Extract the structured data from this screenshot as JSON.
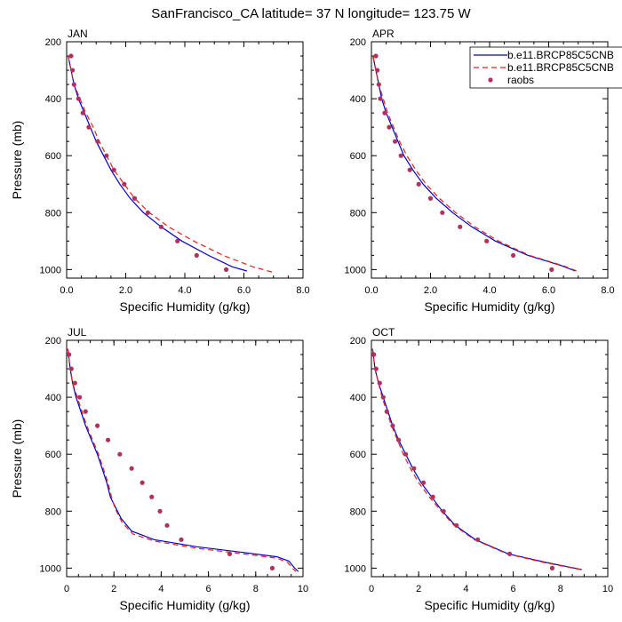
{
  "title": "SanFrancisco_CA  latitude= 37 N longitude= 123.75 W",
  "colors": {
    "model1": "#0000cc",
    "model2": "#e02020",
    "raobs": "#b03060"
  },
  "legend": {
    "placement": "top-right of APR panel",
    "entries": [
      "b.e11.BRCP85C5CNB",
      "b.e11.BRCP85C5CNB",
      "raobs"
    ]
  },
  "chart_data": [
    {
      "type": "line",
      "panel": "JAN",
      "title": "JAN",
      "xlabel": "Specific Humidity (g/kg)",
      "ylabel": "Pressure (mb)",
      "xlim": [
        0,
        8
      ],
      "ylim": [
        1030,
        200
      ],
      "xticks": [
        0,
        2,
        4,
        6,
        8
      ],
      "xtick_labels": [
        "0.0",
        "2.0",
        "4.0",
        "6.0",
        "8.0"
      ],
      "yticks": [
        200,
        400,
        600,
        800,
        1000
      ],
      "ytick_labels": [
        "200",
        "400",
        "600",
        "800",
        "1000"
      ],
      "series": [
        {
          "name": "b.e11.BRCP85C5CNB",
          "style": "solid",
          "points": [
            [
              0.05,
              250
            ],
            [
              0.15,
              300
            ],
            [
              0.25,
              350
            ],
            [
              0.4,
              400
            ],
            [
              0.6,
              450
            ],
            [
              0.8,
              500
            ],
            [
              1.0,
              550
            ],
            [
              1.25,
              600
            ],
            [
              1.5,
              650
            ],
            [
              1.8,
              700
            ],
            [
              2.15,
              750
            ],
            [
              2.6,
              800
            ],
            [
              3.2,
              850
            ],
            [
              3.9,
              900
            ],
            [
              4.8,
              950
            ],
            [
              5.6,
              990
            ],
            [
              6.1,
              1005
            ]
          ]
        },
        {
          "name": "b.e11.BRCP85C5CNB",
          "style": "dashed",
          "points": [
            [
              0.05,
              250
            ],
            [
              0.15,
              300
            ],
            [
              0.25,
              350
            ],
            [
              0.45,
              400
            ],
            [
              0.65,
              450
            ],
            [
              0.9,
              500
            ],
            [
              1.1,
              550
            ],
            [
              1.35,
              600
            ],
            [
              1.6,
              650
            ],
            [
              1.95,
              700
            ],
            [
              2.3,
              750
            ],
            [
              2.8,
              800
            ],
            [
              3.45,
              850
            ],
            [
              4.3,
              900
            ],
            [
              5.3,
              950
            ],
            [
              6.3,
              990
            ],
            [
              7.0,
              1010
            ]
          ]
        },
        {
          "name": "raobs",
          "style": "markers",
          "points": [
            [
              0.15,
              250
            ],
            [
              0.2,
              300
            ],
            [
              0.25,
              350
            ],
            [
              0.4,
              400
            ],
            [
              0.55,
              450
            ],
            [
              0.75,
              500
            ],
            [
              1.05,
              550
            ],
            [
              1.35,
              600
            ],
            [
              1.6,
              650
            ],
            [
              1.95,
              700
            ],
            [
              2.3,
              750
            ],
            [
              2.75,
              800
            ],
            [
              3.2,
              850
            ],
            [
              3.75,
              900
            ],
            [
              4.4,
              950
            ],
            [
              5.4,
              1000
            ]
          ]
        }
      ]
    },
    {
      "type": "line",
      "panel": "APR",
      "title": "APR",
      "xlabel": "Specific Humidity (g/kg)",
      "ylabel": "",
      "xlim": [
        0,
        8
      ],
      "ylim": [
        1030,
        200
      ],
      "xticks": [
        0,
        2,
        4,
        6,
        8
      ],
      "xtick_labels": [
        "0.0",
        "2.0",
        "4.0",
        "6.0",
        "8.0"
      ],
      "yticks": [
        200,
        400,
        600,
        800,
        1000
      ],
      "ytick_labels": [
        "200",
        "400",
        "600",
        "800",
        "1000"
      ],
      "series": [
        {
          "name": "b.e11.BRCP85C5CNB",
          "style": "solid",
          "points": [
            [
              0.05,
              250
            ],
            [
              0.15,
              300
            ],
            [
              0.25,
              350
            ],
            [
              0.35,
              400
            ],
            [
              0.5,
              450
            ],
            [
              0.7,
              500
            ],
            [
              0.9,
              550
            ],
            [
              1.1,
              600
            ],
            [
              1.4,
              650
            ],
            [
              1.75,
              700
            ],
            [
              2.2,
              750
            ],
            [
              2.75,
              800
            ],
            [
              3.4,
              850
            ],
            [
              4.2,
              900
            ],
            [
              5.3,
              950
            ],
            [
              6.4,
              985
            ],
            [
              6.9,
              1005
            ]
          ]
        },
        {
          "name": "b.e11.BRCP85C5CNB",
          "style": "dashed",
          "points": [
            [
              0.05,
              250
            ],
            [
              0.15,
              300
            ],
            [
              0.25,
              350
            ],
            [
              0.4,
              400
            ],
            [
              0.55,
              450
            ],
            [
              0.75,
              500
            ],
            [
              0.95,
              550
            ],
            [
              1.2,
              600
            ],
            [
              1.5,
              650
            ],
            [
              1.85,
              700
            ],
            [
              2.3,
              750
            ],
            [
              2.85,
              800
            ],
            [
              3.5,
              850
            ],
            [
              4.3,
              900
            ],
            [
              5.35,
              950
            ],
            [
              6.45,
              985
            ],
            [
              6.95,
              1005
            ]
          ]
        },
        {
          "name": "raobs",
          "style": "markers",
          "points": [
            [
              0.15,
              250
            ],
            [
              0.2,
              300
            ],
            [
              0.25,
              350
            ],
            [
              0.3,
              400
            ],
            [
              0.45,
              450
            ],
            [
              0.6,
              500
            ],
            [
              0.8,
              550
            ],
            [
              1.0,
              600
            ],
            [
              1.3,
              650
            ],
            [
              1.6,
              700
            ],
            [
              2.0,
              750
            ],
            [
              2.4,
              800
            ],
            [
              3.0,
              850
            ],
            [
              3.9,
              900
            ],
            [
              4.8,
              950
            ],
            [
              6.1,
              1000
            ]
          ]
        }
      ]
    },
    {
      "type": "line",
      "panel": "JUL",
      "title": "JUL",
      "xlabel": "Specific Humidity (g/kg)",
      "ylabel": "Pressure (mb)",
      "xlim": [
        0,
        10
      ],
      "ylim": [
        1030,
        200
      ],
      "xticks": [
        0,
        2,
        4,
        6,
        8,
        10
      ],
      "xtick_labels": [
        "0",
        "2",
        "4",
        "6",
        "8",
        "10"
      ],
      "yticks": [
        200,
        400,
        600,
        800,
        1000
      ],
      "ytick_labels": [
        "200",
        "400",
        "600",
        "800",
        "1000"
      ],
      "series": [
        {
          "name": "b.e11.BRCP85C5CNB",
          "style": "solid",
          "points": [
            [
              0.05,
              230
            ],
            [
              0.15,
              300
            ],
            [
              0.25,
              350
            ],
            [
              0.4,
              400
            ],
            [
              0.6,
              450
            ],
            [
              0.8,
              500
            ],
            [
              1.05,
              550
            ],
            [
              1.3,
              600
            ],
            [
              1.5,
              650
            ],
            [
              1.7,
              700
            ],
            [
              1.85,
              750
            ],
            [
              2.0,
              775
            ],
            [
              2.3,
              825
            ],
            [
              2.75,
              870
            ],
            [
              3.7,
              900
            ],
            [
              5.5,
              925
            ],
            [
              7.5,
              945
            ],
            [
              8.9,
              960
            ],
            [
              9.4,
              975
            ],
            [
              9.65,
              1000
            ],
            [
              9.8,
              1012
            ]
          ]
        },
        {
          "name": "b.e11.BRCP85C5CNB",
          "style": "dashed",
          "points": [
            [
              0.05,
              230
            ],
            [
              0.15,
              300
            ],
            [
              0.25,
              350
            ],
            [
              0.45,
              400
            ],
            [
              0.65,
              450
            ],
            [
              0.85,
              500
            ],
            [
              1.1,
              550
            ],
            [
              1.35,
              600
            ],
            [
              1.55,
              650
            ],
            [
              1.75,
              700
            ],
            [
              1.9,
              750
            ],
            [
              2.05,
              790
            ],
            [
              2.35,
              840
            ],
            [
              2.8,
              880
            ],
            [
              3.7,
              905
            ],
            [
              5.5,
              930
            ],
            [
              7.5,
              950
            ],
            [
              8.9,
              965
            ],
            [
              9.35,
              980
            ],
            [
              9.55,
              1000
            ],
            [
              9.7,
              1012
            ]
          ]
        },
        {
          "name": "raobs",
          "style": "markers",
          "points": [
            [
              0.1,
              250
            ],
            [
              0.2,
              300
            ],
            [
              0.35,
              350
            ],
            [
              0.55,
              400
            ],
            [
              0.8,
              450
            ],
            [
              1.3,
              500
            ],
            [
              1.75,
              550
            ],
            [
              2.25,
              600
            ],
            [
              2.75,
              650
            ],
            [
              3.2,
              700
            ],
            [
              3.6,
              750
            ],
            [
              3.95,
              800
            ],
            [
              4.25,
              850
            ],
            [
              4.85,
              900
            ],
            [
              6.9,
              950
            ],
            [
              8.7,
              1000
            ]
          ]
        }
      ]
    },
    {
      "type": "line",
      "panel": "OCT",
      "title": "OCT",
      "xlabel": "Specific Humidity (g/kg)",
      "ylabel": "",
      "xlim": [
        0,
        10
      ],
      "ylim": [
        1030,
        200
      ],
      "xticks": [
        0,
        2,
        4,
        6,
        8,
        10
      ],
      "xtick_labels": [
        "0",
        "2",
        "4",
        "6",
        "8",
        "10"
      ],
      "yticks": [
        200,
        400,
        600,
        800,
        1000
      ],
      "ytick_labels": [
        "200",
        "400",
        "600",
        "800",
        "1000"
      ],
      "series": [
        {
          "name": "b.e11.BRCP85C5CNB",
          "style": "solid",
          "points": [
            [
              0.05,
              230
            ],
            [
              0.15,
              300
            ],
            [
              0.3,
              350
            ],
            [
              0.5,
              400
            ],
            [
              0.7,
              450
            ],
            [
              0.9,
              500
            ],
            [
              1.15,
              550
            ],
            [
              1.45,
              600
            ],
            [
              1.75,
              650
            ],
            [
              2.1,
              700
            ],
            [
              2.55,
              750
            ],
            [
              3.0,
              800
            ],
            [
              3.55,
              850
            ],
            [
              4.4,
              900
            ],
            [
              5.8,
              950
            ],
            [
              7.4,
              980
            ],
            [
              8.9,
              1005
            ]
          ]
        },
        {
          "name": "b.e11.BRCP85C5CNB",
          "style": "dashed",
          "points": [
            [
              0.05,
              230
            ],
            [
              0.15,
              300
            ],
            [
              0.3,
              350
            ],
            [
              0.45,
              400
            ],
            [
              0.65,
              450
            ],
            [
              0.85,
              500
            ],
            [
              1.1,
              550
            ],
            [
              1.35,
              600
            ],
            [
              1.65,
              650
            ],
            [
              2.0,
              700
            ],
            [
              2.45,
              750
            ],
            [
              2.95,
              800
            ],
            [
              3.5,
              850
            ],
            [
              4.35,
              900
            ],
            [
              5.75,
              950
            ],
            [
              7.3,
              980
            ],
            [
              8.85,
              1005
            ]
          ]
        },
        {
          "name": "raobs",
          "style": "markers",
          "points": [
            [
              0.1,
              250
            ],
            [
              0.2,
              300
            ],
            [
              0.35,
              350
            ],
            [
              0.5,
              400
            ],
            [
              0.65,
              450
            ],
            [
              0.9,
              500
            ],
            [
              1.15,
              550
            ],
            [
              1.45,
              600
            ],
            [
              1.8,
              650
            ],
            [
              2.2,
              700
            ],
            [
              2.6,
              750
            ],
            [
              3.05,
              800
            ],
            [
              3.6,
              850
            ],
            [
              4.5,
              900
            ],
            [
              5.85,
              950
            ],
            [
              7.65,
              1000
            ]
          ]
        }
      ]
    }
  ]
}
